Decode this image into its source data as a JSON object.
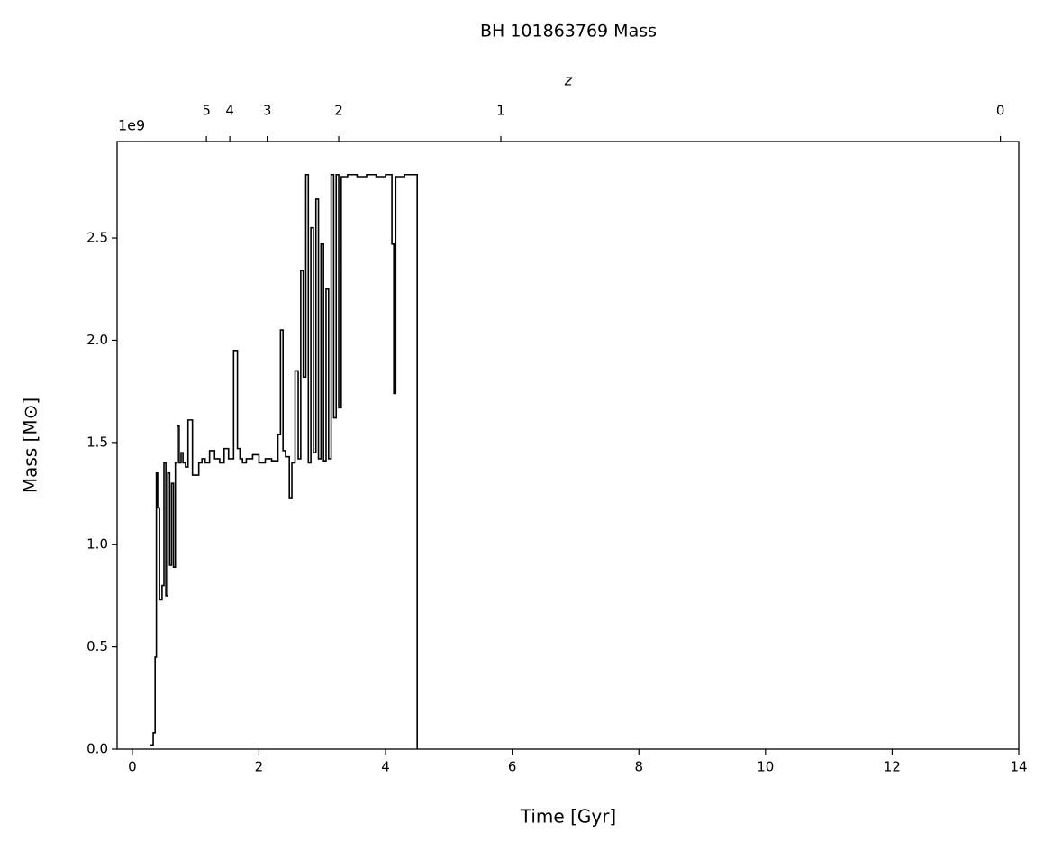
{
  "chart_data": {
    "type": "step",
    "title": "BH 101863769 Mass",
    "xlabel": "Time [Gyr]",
    "ylabel": "Mass [M⊙]",
    "x2label": "z",
    "y_offset_text": "1e9",
    "color": "#000000",
    "xlim": [
      -0.24,
      14
    ],
    "ylim": [
      0,
      2.972
    ],
    "xticks": [
      0,
      2,
      4,
      6,
      8,
      10,
      12,
      14
    ],
    "yticks": [
      {
        "value": 0,
        "label": "0.0"
      },
      {
        "value": 0.5,
        "label": "0.5"
      },
      {
        "value": 1,
        "label": "1.0"
      },
      {
        "value": 1.5,
        "label": "1.5"
      },
      {
        "value": 2,
        "label": "2.0"
      },
      {
        "value": 2.5,
        "label": "2.5"
      }
    ],
    "x2ticks": [
      {
        "value": 1.17,
        "label": "5"
      },
      {
        "value": 1.54,
        "label": "4"
      },
      {
        "value": 2.13,
        "label": "3"
      },
      {
        "value": 3.26,
        "label": "2"
      },
      {
        "value": 5.82,
        "label": "1"
      },
      {
        "value": 13.71,
        "label": "0"
      }
    ],
    "x": [
      0.28,
      0.33,
      0.36,
      0.38,
      0.4,
      0.43,
      0.47,
      0.5,
      0.53,
      0.56,
      0.59,
      0.62,
      0.65,
      0.68,
      0.71,
      0.74,
      0.77,
      0.8,
      0.84,
      0.88,
      0.95,
      1.05,
      1.1,
      1.15,
      1.22,
      1.3,
      1.38,
      1.45,
      1.52,
      1.6,
      1.66,
      1.7,
      1.74,
      1.8,
      1.9,
      2.0,
      2.1,
      2.2,
      2.3,
      2.34,
      2.38,
      2.42,
      2.48,
      2.52,
      2.57,
      2.62,
      2.66,
      2.7,
      2.74,
      2.78,
      2.82,
      2.86,
      2.9,
      2.94,
      2.98,
      3.02,
      3.06,
      3.1,
      3.14,
      3.18,
      3.22,
      3.26,
      3.3,
      3.4,
      3.55,
      3.7,
      3.85,
      4.0,
      4.1,
      4.13,
      4.16,
      4.3,
      4.5
    ],
    "values": [
      0.02,
      0.08,
      0.45,
      1.35,
      1.18,
      0.73,
      0.8,
      1.4,
      0.75,
      1.35,
      0.9,
      1.3,
      0.89,
      1.4,
      1.58,
      1.4,
      1.45,
      1.4,
      1.38,
      1.61,
      1.34,
      1.4,
      1.42,
      1.4,
      1.46,
      1.42,
      1.4,
      1.47,
      1.42,
      1.95,
      1.47,
      1.42,
      1.4,
      1.42,
      1.44,
      1.4,
      1.42,
      1.41,
      1.54,
      2.05,
      1.46,
      1.43,
      1.23,
      1.4,
      1.85,
      1.42,
      2.34,
      1.82,
      2.81,
      1.4,
      2.55,
      1.45,
      2.69,
      1.42,
      2.47,
      1.41,
      2.25,
      1.42,
      2.81,
      1.62,
      2.81,
      1.67,
      2.8,
      2.81,
      2.8,
      2.81,
      2.8,
      2.81,
      2.47,
      1.74,
      2.8,
      2.81,
      0
    ]
  }
}
